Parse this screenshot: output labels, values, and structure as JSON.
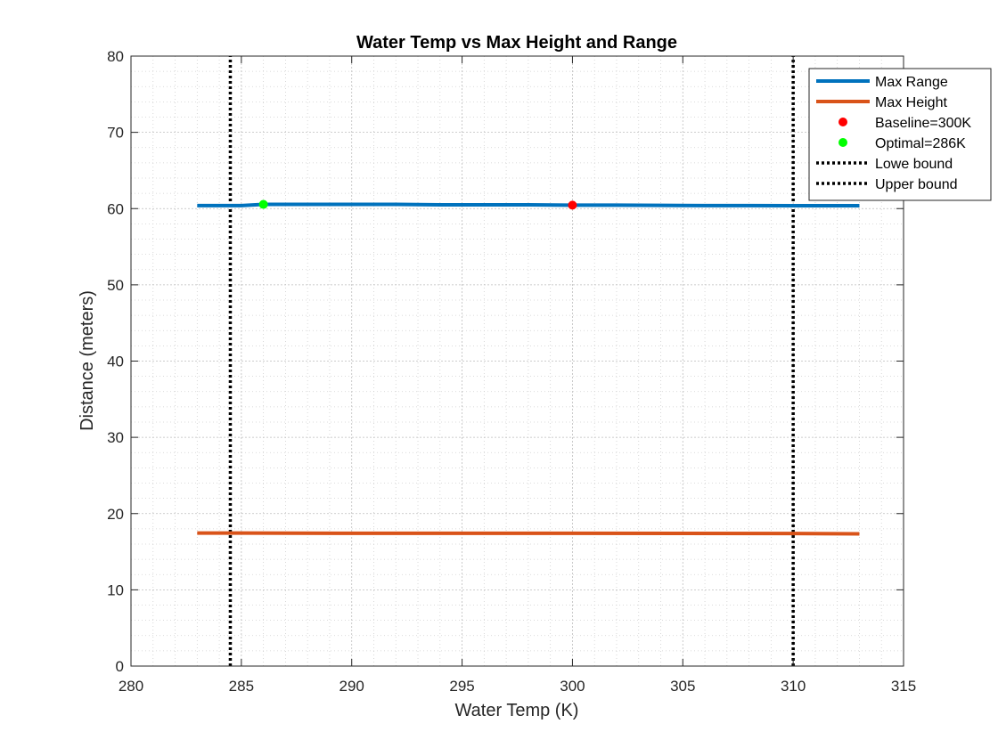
{
  "chart_data": {
    "type": "line",
    "title": "Water Temp vs Max Height and Range",
    "xlabel": "Water Temp (K)",
    "ylabel": "Distance (meters)",
    "xlim": [
      280,
      315
    ],
    "ylim": [
      0,
      80
    ],
    "xticks": [
      280,
      285,
      290,
      295,
      300,
      305,
      310,
      315
    ],
    "yticks": [
      0,
      10,
      20,
      30,
      40,
      50,
      60,
      70,
      80
    ],
    "grid": "on",
    "minor_grid": "on",
    "legend_position": "top-right",
    "series": [
      {
        "name": "Max Range",
        "color": "#0072BD",
        "style": "solid",
        "x": [
          283,
          284,
          285,
          286,
          287,
          288,
          290,
          292,
          294,
          296,
          298,
          300,
          302,
          304,
          306,
          308,
          310,
          312,
          313
        ],
        "y": [
          60.4,
          60.4,
          60.4,
          60.55,
          60.55,
          60.55,
          60.55,
          60.55,
          60.5,
          60.5,
          60.5,
          60.45,
          60.45,
          60.42,
          60.4,
          60.4,
          60.38,
          60.38,
          60.38
        ]
      },
      {
        "name": "Max Height",
        "color": "#D95319",
        "style": "solid",
        "x": [
          283,
          285,
          290,
          295,
          300,
          305,
          310,
          313
        ],
        "y": [
          17.45,
          17.45,
          17.42,
          17.42,
          17.42,
          17.4,
          17.38,
          17.35
        ]
      },
      {
        "name": "Baseline=300K",
        "color": "#FF0000",
        "style": "marker",
        "x": [
          300
        ],
        "y": [
          60.45
        ]
      },
      {
        "name": "Optimal=286K",
        "color": "#00FF00",
        "style": "marker",
        "x": [
          286
        ],
        "y": [
          60.55
        ]
      },
      {
        "name": "Lowe bound",
        "color": "#000000",
        "style": "dotted-vline",
        "x": [
          284.5,
          284.5
        ],
        "y": [
          0,
          80
        ]
      },
      {
        "name": "Upper bound",
        "color": "#000000",
        "style": "dotted-vline",
        "x": [
          310,
          310
        ],
        "y": [
          0,
          80
        ]
      }
    ]
  }
}
